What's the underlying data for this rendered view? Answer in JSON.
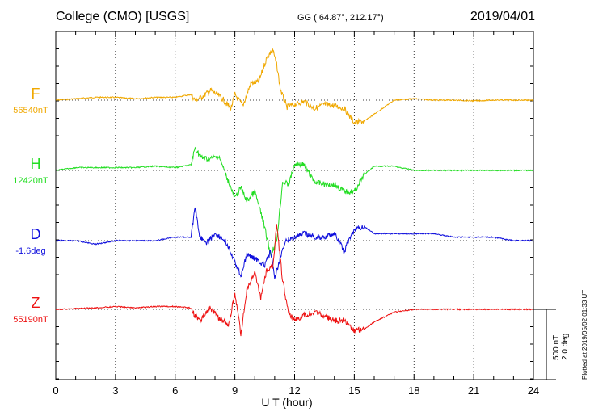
{
  "header": {
    "station": "College (CMO)  [USGS]",
    "coords": "GG ( 64.87°, 212.17°)",
    "date": "2019/04/01"
  },
  "x_axis": {
    "label": "U T (hour)",
    "ticks": [
      "0",
      "3",
      "6",
      "9",
      "12",
      "15",
      "18",
      "21",
      "24"
    ]
  },
  "scale": {
    "nt": "500 nT",
    "deg": "2.0 deg"
  },
  "footer": {
    "plotted": "Plotted at 2019/05/02 01:33 UT"
  },
  "chart_data": {
    "type": "line",
    "title": "College (CMO)  [USGS]",
    "xlabel": "U T (hour)",
    "ylabel": "",
    "xlim": [
      0,
      24
    ],
    "grid": true,
    "scale_bar": {
      "nT": 500,
      "deg": 2.0
    },
    "series": [
      {
        "name": "F",
        "baseline_label": "56540nT",
        "color": "#f0a800",
        "x": [
          0,
          1,
          2,
          3,
          4,
          5,
          6,
          6.8,
          7,
          7.3,
          7.8,
          8.3,
          8.8,
          9.0,
          9.4,
          9.8,
          10.2,
          10.6,
          10.9,
          11.1,
          11.3,
          11.6,
          12.0,
          12.5,
          13,
          13.5,
          14,
          14.5,
          15,
          15.5,
          16,
          17,
          18,
          19,
          20,
          21,
          22,
          23,
          24
        ],
        "values": [
          0,
          10,
          20,
          20,
          10,
          20,
          20,
          40,
          0,
          20,
          70,
          20,
          -60,
          40,
          -40,
          120,
          130,
          300,
          360,
          250,
          70,
          -50,
          -30,
          -10,
          -60,
          -30,
          -40,
          -60,
          -160,
          -150,
          -100,
          0,
          10,
          0,
          0,
          -5,
          0,
          0,
          0
        ]
      },
      {
        "name": "H",
        "baseline_label": "12420nT",
        "color": "#22dd22",
        "x": [
          0,
          1,
          2,
          3,
          4,
          5,
          6,
          6.8,
          7.0,
          7.3,
          7.7,
          8.2,
          8.6,
          9.0,
          9.3,
          9.6,
          10.0,
          10.4,
          10.8,
          11.1,
          11.4,
          11.7,
          12.0,
          12.4,
          13,
          13.5,
          14,
          14.5,
          15,
          15.5,
          16,
          17,
          18,
          19,
          20,
          21,
          22,
          23,
          24
        ],
        "values": [
          0,
          20,
          20,
          20,
          20,
          30,
          20,
          40,
          160,
          90,
          80,
          100,
          -50,
          -200,
          -120,
          -220,
          -150,
          -350,
          -600,
          -500,
          -80,
          -100,
          40,
          50,
          -80,
          -100,
          -100,
          -150,
          -150,
          -30,
          30,
          30,
          0,
          0,
          0,
          0,
          0,
          0,
          0
        ]
      },
      {
        "name": "D",
        "baseline_label": "-1.6deg",
        "color": "#1010dd",
        "x": [
          0,
          1,
          2,
          3,
          4,
          5,
          6,
          6.8,
          7.0,
          7.2,
          7.5,
          8.0,
          8.5,
          9.0,
          9.3,
          9.6,
          10.0,
          10.5,
          10.8,
          11.0,
          11.3,
          11.6,
          12.0,
          12.5,
          13,
          13.5,
          14,
          14.5,
          14.8,
          15.0,
          15.5,
          16,
          17,
          18,
          19,
          20,
          21,
          22,
          23,
          24
        ],
        "values": [
          0,
          0,
          -0.1,
          0,
          0,
          0,
          0.1,
          0.1,
          1.0,
          0.2,
          -0.1,
          0.2,
          0,
          -0.6,
          -1.0,
          -0.4,
          -0.5,
          -0.7,
          -0.3,
          -1.1,
          -0.4,
          0,
          0.1,
          0.2,
          0.1,
          0.1,
          0.2,
          -0.3,
          0.1,
          0.3,
          0.4,
          0.2,
          0.2,
          0.2,
          0.2,
          0.1,
          0.1,
          0.1,
          0,
          0
        ]
      },
      {
        "name": "Z",
        "baseline_label": "55190nT",
        "color": "#ee1111",
        "x": [
          0,
          1,
          2,
          3,
          4,
          5,
          6,
          6.8,
          7.0,
          7.3,
          7.7,
          8.2,
          8.7,
          9.0,
          9.3,
          9.6,
          10.0,
          10.3,
          10.6,
          10.9,
          11.1,
          11.4,
          11.7,
          12.0,
          12.5,
          13,
          13.5,
          14,
          14.5,
          15,
          15.5,
          16,
          17,
          18,
          19,
          20,
          21,
          22,
          23,
          24
        ],
        "values": [
          0,
          5,
          10,
          20,
          10,
          20,
          20,
          10,
          -50,
          -80,
          20,
          -60,
          -110,
          120,
          -180,
          140,
          260,
          80,
          280,
          300,
          600,
          200,
          -20,
          -80,
          -40,
          -20,
          -50,
          -80,
          -80,
          -150,
          -140,
          -90,
          -20,
          0,
          0,
          0,
          0,
          0,
          0,
          0
        ]
      }
    ]
  }
}
